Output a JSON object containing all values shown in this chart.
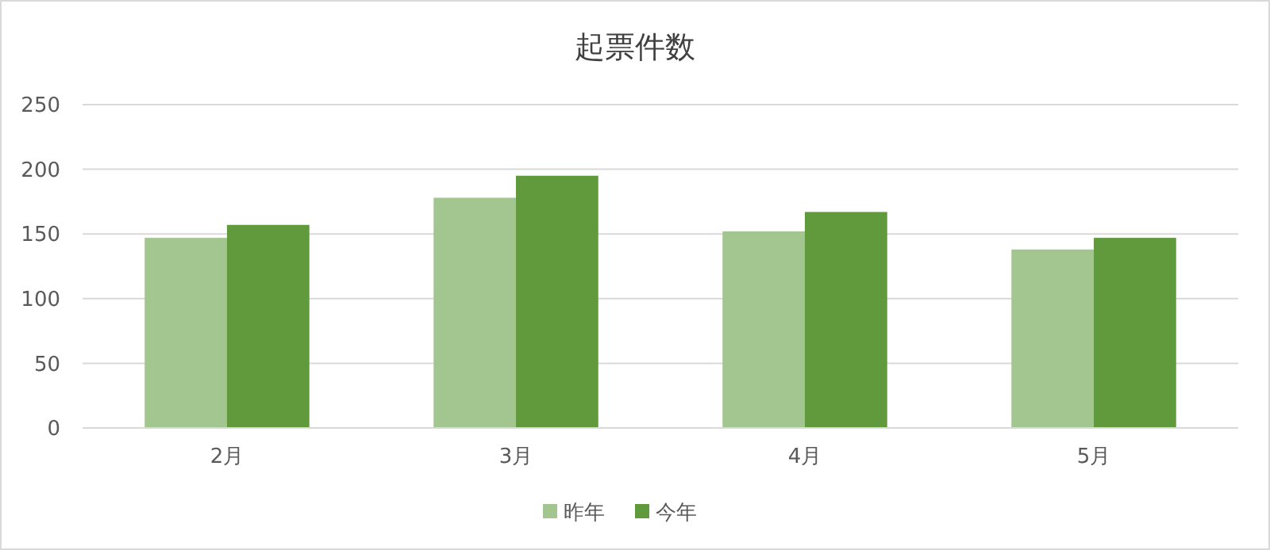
{
  "chart_data": {
    "type": "bar",
    "title": "起票件数",
    "categories": [
      "2月",
      "3月",
      "4月",
      "5月"
    ],
    "series": [
      {
        "name": "昨年",
        "color": "#a3c58f",
        "values": [
          147,
          178,
          152,
          138
        ]
      },
      {
        "name": "今年",
        "color": "#619a3d",
        "values": [
          157,
          195,
          167,
          147
        ]
      }
    ],
    "ylim": [
      0,
      250
    ],
    "yticks": [
      0,
      50,
      100,
      150,
      200,
      250
    ],
    "grid": "y",
    "legend": "bottom"
  }
}
